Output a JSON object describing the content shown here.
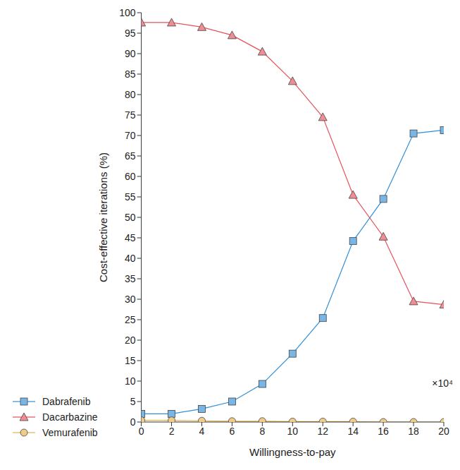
{
  "chart_data": {
    "type": "line",
    "x_label": "Willingness-to-pay",
    "y_label": "Cost-effective iterations (%)",
    "annotation": "×10⁴",
    "x": [
      0,
      2,
      4,
      6,
      8,
      10,
      12,
      14,
      16,
      18,
      20
    ],
    "series": [
      {
        "name": "Dabrafenib",
        "color": "#2f8fd8",
        "marker": "square",
        "values": [
          2,
          2,
          3.2,
          5,
          9.3,
          16.7,
          25.4,
          44.2,
          54.5,
          70.5,
          71.3
        ]
      },
      {
        "name": "Dacarbazine",
        "color": "#e8505b",
        "marker": "triangle",
        "values": [
          97.6,
          97.6,
          96.5,
          94.5,
          90.5,
          83.3,
          74.5,
          55.5,
          45.3,
          29.5,
          28.7
        ]
      },
      {
        "name": "Vemurafenib",
        "color": "#e8b04b",
        "marker": "circle",
        "values": [
          0.4,
          0.4,
          0.3,
          0.2,
          0.2,
          0.1,
          0.1,
          0.1,
          0,
          0,
          0
        ]
      }
    ],
    "xlim": [
      0,
      20
    ],
    "xticks": [
      0,
      2,
      4,
      6,
      8,
      10,
      12,
      14,
      16,
      18,
      20
    ],
    "ylim": [
      0,
      100
    ],
    "yticks": [
      0,
      5,
      10,
      15,
      20,
      25,
      30,
      35,
      40,
      45,
      50,
      55,
      60,
      65,
      70,
      75,
      80,
      85,
      90,
      95,
      100
    ],
    "legend": "bottom left",
    "grid": false
  }
}
